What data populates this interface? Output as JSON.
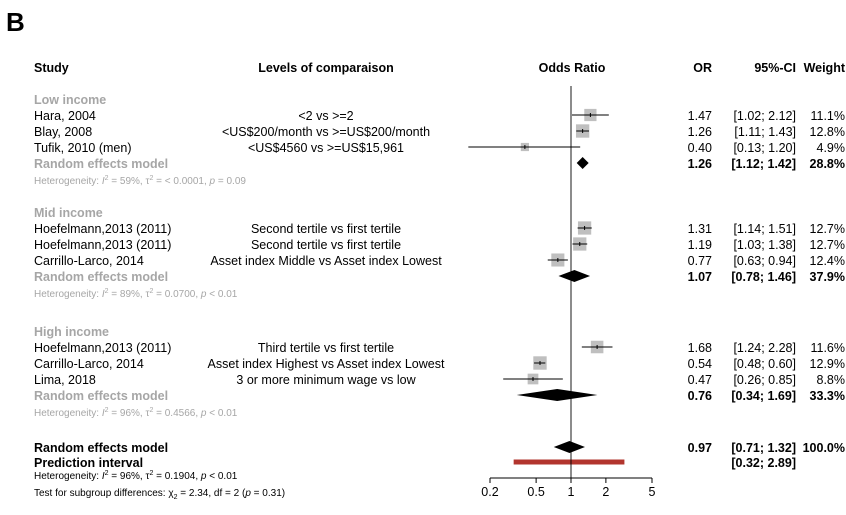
{
  "panel_label": "B",
  "headers": {
    "study": "Study",
    "levels": "Levels of comparaison",
    "odds_ratio": "Odds Ratio",
    "or": "OR",
    "ci": "95%-CI",
    "weight": "Weight"
  },
  "colors": {
    "subgroup_text": "#a6a6a6",
    "square": "#bfbfbf",
    "diamond": "#000000",
    "prediction_bar": "#b2352e",
    "line": "#000000"
  },
  "chart_data": {
    "type": "forest",
    "x_scale": "log",
    "xlim": [
      0.2,
      5
    ],
    "reference_value": 1,
    "x_ticks": [
      {
        "value": 0.2,
        "label": "0.2"
      },
      {
        "value": 0.5,
        "label": "0.5"
      },
      {
        "value": 1,
        "label": "1"
      },
      {
        "value": 2,
        "label": "2"
      },
      {
        "value": 5,
        "label": "5"
      }
    ],
    "subgroups": [
      {
        "title": "Low income",
        "studies": [
          {
            "study": "Hara, 2004",
            "comparison": "<2 vs >=2",
            "or": 1.47,
            "lo": 1.02,
            "hi": 2.12,
            "or_text": "1.47",
            "ci_text": "[1.02; 2.12]",
            "weight_text": "11.1%",
            "weight": 11.1
          },
          {
            "study": "Blay, 2008",
            "comparison": "<US$200/month vs >=US$200/month",
            "or": 1.26,
            "lo": 1.11,
            "hi": 1.43,
            "or_text": "1.26",
            "ci_text": "[1.11; 1.43]",
            "weight_text": "12.8%",
            "weight": 12.8
          },
          {
            "study": "Tufik, 2010 (men)",
            "comparison": "<US$4560 vs >=US$15,961",
            "or": 0.4,
            "lo": 0.13,
            "hi": 1.2,
            "or_text": "0.40",
            "ci_text": "[0.13; 1.20]",
            "weight_text": "4.9%",
            "weight": 4.9
          }
        ],
        "random": {
          "label": "Random effects model",
          "or": 1.26,
          "lo": 1.12,
          "hi": 1.42,
          "or_text": "1.26",
          "ci_text": "[1.12; 1.42]",
          "weight_text": "28.8%"
        },
        "heterogeneity": {
          "prefix": "Heterogeneity: ",
          "i2_symbol": "I",
          "i2_value": " = 59%, τ",
          "tau2_value": " = < 0.0001, ",
          "p_symbol": "p",
          "p_value": " = 0.09"
        }
      },
      {
        "title": "Mid income",
        "studies": [
          {
            "study": "Hoefelmann,2013 (2011)",
            "comparison": "Second tertile vs first tertile",
            "or": 1.31,
            "lo": 1.14,
            "hi": 1.51,
            "or_text": "1.31",
            "ci_text": "[1.14; 1.51]",
            "weight_text": "12.7%",
            "weight": 12.7
          },
          {
            "study": "Hoefelmann,2013 (2011)",
            "comparison": "Second tertile vs first tertile",
            "or": 1.19,
            "lo": 1.03,
            "hi": 1.38,
            "or_text": "1.19",
            "ci_text": "[1.03; 1.38]",
            "weight_text": "12.7%",
            "weight": 12.7
          },
          {
            "study": "Carrillo-Larco, 2014",
            "comparison": "Asset index Middle vs Asset index Lowest",
            "or": 0.77,
            "lo": 0.63,
            "hi": 0.94,
            "or_text": "0.77",
            "ci_text": "[0.63; 0.94]",
            "weight_text": "12.4%",
            "weight": 12.4
          }
        ],
        "random": {
          "label": "Random effects model",
          "or": 1.07,
          "lo": 0.78,
          "hi": 1.46,
          "or_text": "1.07",
          "ci_text": "[0.78; 1.46]",
          "weight_text": "37.9%"
        },
        "heterogeneity": {
          "prefix": "Heterogeneity: ",
          "i2_symbol": "I",
          "i2_value": " = 89%, τ",
          "tau2_value": " = 0.0700, ",
          "p_symbol": "p",
          "p_value": " < 0.01"
        }
      },
      {
        "title": "High income",
        "studies": [
          {
            "study": "Hoefelmann,2013 (2011)",
            "comparison": "Third tertile  vs first tertile",
            "or": 1.68,
            "lo": 1.24,
            "hi": 2.28,
            "or_text": "1.68",
            "ci_text": "[1.24; 2.28]",
            "weight_text": "11.6%",
            "weight": 11.6
          },
          {
            "study": "Carrillo-Larco, 2014",
            "comparison": "Asset index Highest vs Asset index Lowest",
            "or": 0.54,
            "lo": 0.48,
            "hi": 0.6,
            "or_text": "0.54",
            "ci_text": "[0.48; 0.60]",
            "weight_text": "12.9%",
            "weight": 12.9
          },
          {
            "study": "Lima, 2018",
            "comparison": "3 or more minimum wage  vs low",
            "or": 0.47,
            "lo": 0.26,
            "hi": 0.85,
            "or_text": "0.47",
            "ci_text": "[0.26; 0.85]",
            "weight_text": "8.8%",
            "weight": 8.8
          }
        ],
        "random": {
          "label": "Random effects model",
          "or": 0.76,
          "lo": 0.34,
          "hi": 1.69,
          "or_text": "0.76",
          "ci_text": "[0.34; 1.69]",
          "weight_text": "33.3%"
        },
        "heterogeneity": {
          "prefix": "Heterogeneity: ",
          "i2_symbol": "I",
          "i2_value": " = 96%, τ",
          "tau2_value": " = 0.4566, ",
          "p_symbol": "p",
          "p_value": " < 0.01"
        }
      }
    ],
    "overall": {
      "label": "Random effects model",
      "or": 0.97,
      "lo": 0.71,
      "hi": 1.32,
      "or_text": "0.97",
      "ci_text": "[0.71; 1.32]",
      "weight_text": "100.0%"
    },
    "prediction": {
      "label": "Prediction interval",
      "lo": 0.32,
      "hi": 2.89,
      "ci_text": "[0.32; 2.89]"
    },
    "overall_heterogeneity": {
      "prefix": "Heterogeneity: ",
      "i2_symbol": "I",
      "i2_value": " = 96%, τ",
      "tau2_value": " = 0.1904, ",
      "p_symbol": "p",
      "p_value": " < 0.01"
    },
    "subgroup_test": {
      "prefix": "Test for subgroup differences: χ",
      "sub": "2",
      "mid": " = 2.34, df = 2 (",
      "p_symbol": "p",
      "p_value": " = 0.31)"
    }
  }
}
